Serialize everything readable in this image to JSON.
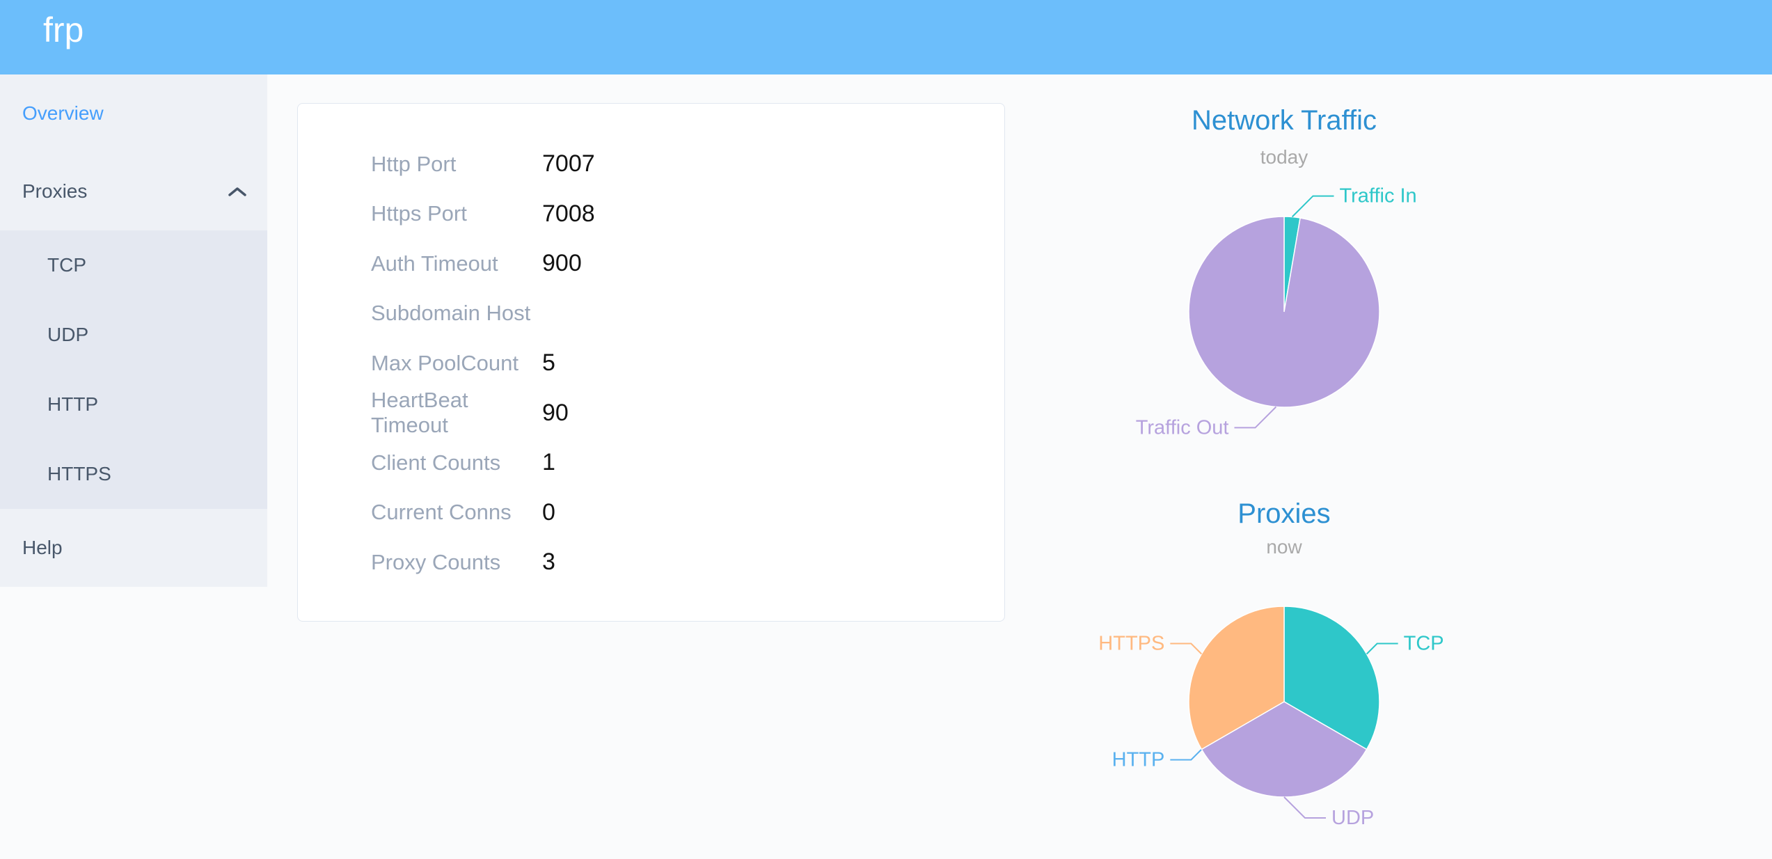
{
  "header": {
    "logo": "frp"
  },
  "sidebar": {
    "items": [
      {
        "label": "Overview",
        "active": true
      },
      {
        "label": "Proxies",
        "icon": "chevron-up",
        "expanded": true
      },
      {
        "label": "TCP"
      },
      {
        "label": "UDP"
      },
      {
        "label": "HTTP"
      },
      {
        "label": "HTTPS"
      },
      {
        "label": "Help"
      }
    ]
  },
  "server_info": {
    "rows": [
      {
        "label": "Http Port",
        "value": "7007"
      },
      {
        "label": "Https Port",
        "value": "7008"
      },
      {
        "label": "Auth Timeout",
        "value": "900"
      },
      {
        "label": "Subdomain Host",
        "value": ""
      },
      {
        "label": "Max PoolCount",
        "value": "5"
      },
      {
        "label": "HeartBeat Timeout",
        "value": "90"
      },
      {
        "label": "Client Counts",
        "value": "1"
      },
      {
        "label": "Current Conns",
        "value": "0"
      },
      {
        "label": "Proxy Counts",
        "value": "3"
      }
    ]
  },
  "chart_data": [
    {
      "type": "pie",
      "title": "Network Traffic",
      "subtitle": "today",
      "legend_position": "none",
      "series": [
        {
          "name": "Traffic In",
          "value": 2.7,
          "color": "#2ec7c9"
        },
        {
          "name": "Traffic Out",
          "value": 97.3,
          "color": "#b6a2de"
        }
      ]
    },
    {
      "type": "pie",
      "title": "Proxies",
      "subtitle": "now",
      "legend_position": "none",
      "series": [
        {
          "name": "TCP",
          "value": 1,
          "color": "#2ec7c9"
        },
        {
          "name": "UDP",
          "value": 1,
          "color": "#b6a2de"
        },
        {
          "name": "HTTP",
          "value": 0,
          "color": "#5ab1ef"
        },
        {
          "name": "HTTPS",
          "value": 1,
          "color": "#ffb980"
        }
      ]
    }
  ],
  "colors": {
    "header_bg": "#6cbefb",
    "sidebar_bg": "#eef1f6",
    "submenu_bg": "#e4e8f1",
    "menu_text": "#48576a",
    "menu_active": "#459efc",
    "chart_title": "#2d90d2",
    "chart_subtitle": "#a9a9a9",
    "card_label": "#9aa6b8",
    "card_value": "#121212"
  }
}
